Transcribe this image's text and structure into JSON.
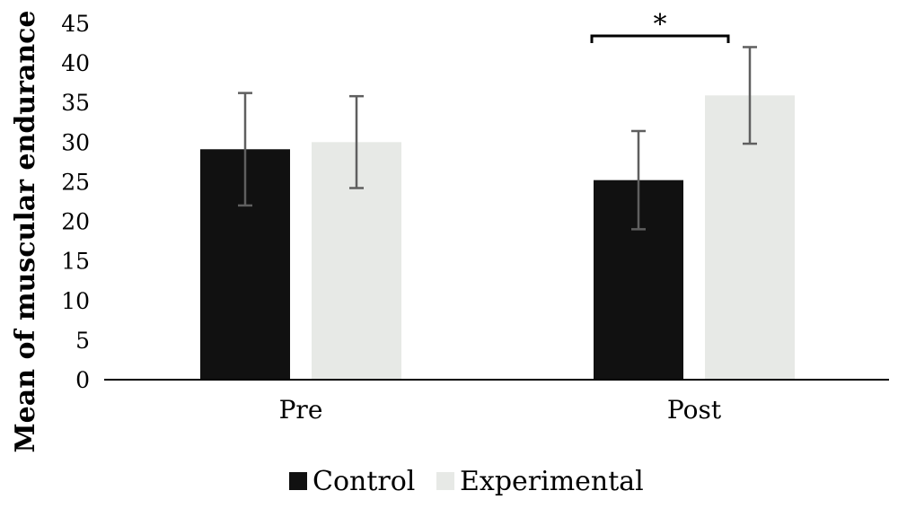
{
  "chart_data": {
    "type": "bar",
    "title": "",
    "xlabel": "",
    "ylabel": "Mean of muscular endurance",
    "categories": [
      "Pre",
      "Post"
    ],
    "series": [
      {
        "name": "Control",
        "values": [
          29.1,
          25.2
        ],
        "errors": [
          7.1,
          6.2
        ],
        "color": "#111111"
      },
      {
        "name": "Experimental",
        "values": [
          30.0,
          35.9
        ],
        "errors": [
          5.8,
          6.1
        ],
        "color": "#e7e9e6"
      }
    ],
    "ylim": [
      0,
      45
    ],
    "yticks": [
      0,
      5,
      10,
      15,
      20,
      25,
      30,
      35,
      40,
      45
    ],
    "error_bar_color": "#5f5f5f",
    "grid": false,
    "legend": "bottom",
    "annotations": [
      {
        "text": "*",
        "category": "Post",
        "type": "significance-bracket"
      }
    ]
  }
}
